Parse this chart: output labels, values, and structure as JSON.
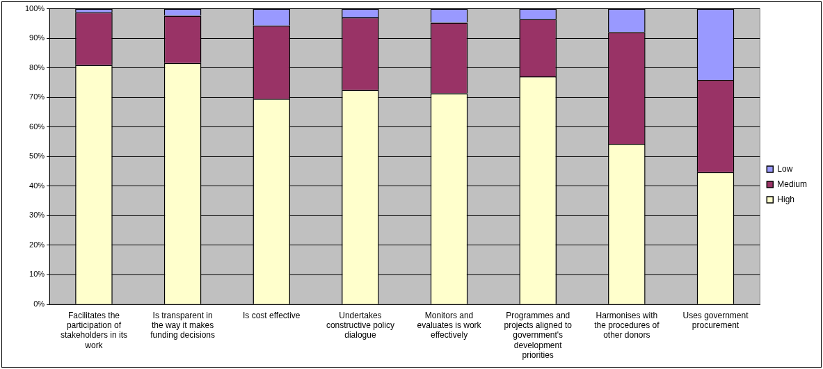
{
  "chart_data": {
    "type": "bar",
    "stacked": true,
    "categories": [
      "Facilitates the participation of stakeholders in its work",
      "Is transparent in the way it makes funding decisions",
      "Is cost effective",
      "Undertakes constructive policy dialogue",
      "Monitors and evaluates is work effectively",
      "Programmes and projects aligned to government's development priorities",
      "Harmonises with the procedures of other donors",
      "Uses government procurement"
    ],
    "series": [
      {
        "name": "High",
        "color": "#ffffcc",
        "values": [
          81.0,
          81.6,
          69.5,
          72.5,
          71.4,
          77.1,
          54.3,
          44.7
        ]
      },
      {
        "name": "Medium",
        "color": "#993366",
        "values": [
          17.8,
          16.1,
          24.8,
          24.6,
          23.9,
          19.4,
          37.8,
          31.2
        ]
      },
      {
        "name": "Low",
        "color": "#9999ff",
        "values": [
          1.2,
          2.3,
          5.7,
          2.9,
          4.7,
          3.5,
          7.9,
          24.1
        ]
      }
    ],
    "ylim": [
      0,
      100
    ],
    "yticks": [
      {
        "value": 0,
        "label": "0%"
      },
      {
        "value": 10,
        "label": "10%"
      },
      {
        "value": 20,
        "label": "20%"
      },
      {
        "value": 30,
        "label": "30%"
      },
      {
        "value": 40,
        "label": "40%"
      },
      {
        "value": 50,
        "label": "50%"
      },
      {
        "value": 60,
        "label": "60%"
      },
      {
        "value": 70,
        "label": "70%"
      },
      {
        "value": 80,
        "label": "80%"
      },
      {
        "value": 90,
        "label": "90%"
      },
      {
        "value": 100,
        "label": "100%"
      }
    ],
    "grid": "y",
    "legend": "right"
  }
}
